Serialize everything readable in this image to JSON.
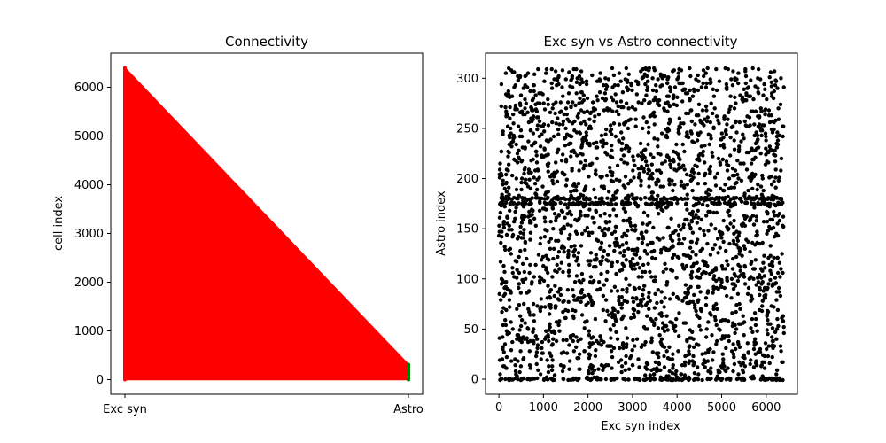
{
  "colors": {
    "left_fill": "#ff0000",
    "left_right_marker": "#008000",
    "scatter": "#000000"
  },
  "chart_data": [
    {
      "type": "line",
      "title": "Connectivity",
      "xlabel": "",
      "ylabel": "cell index",
      "categories": [
        "Exc syn",
        "Astro"
      ],
      "ylim": [
        -300,
        6700
      ],
      "yticks": [
        0,
        1000,
        2000,
        3000,
        4000,
        5000,
        6000
      ],
      "exc_syn_range": [
        0,
        6400
      ],
      "astro_range": [
        0,
        310
      ],
      "grid": false
    },
    {
      "type": "scatter",
      "title": "Exc syn vs Astro connectivity",
      "xlabel": "Exc syn index",
      "ylabel": "Astro index",
      "xlim": [
        -300,
        6700
      ],
      "ylim": [
        -15,
        325
      ],
      "xticks": [
        0,
        1000,
        2000,
        3000,
        4000,
        5000,
        6000
      ],
      "yticks": [
        0,
        50,
        100,
        150,
        200,
        250,
        300
      ],
      "x_range": [
        0,
        6400
      ],
      "y_range": [
        0,
        310
      ],
      "dense_rows": [
        0,
        175,
        180
      ],
      "grid": false
    }
  ]
}
